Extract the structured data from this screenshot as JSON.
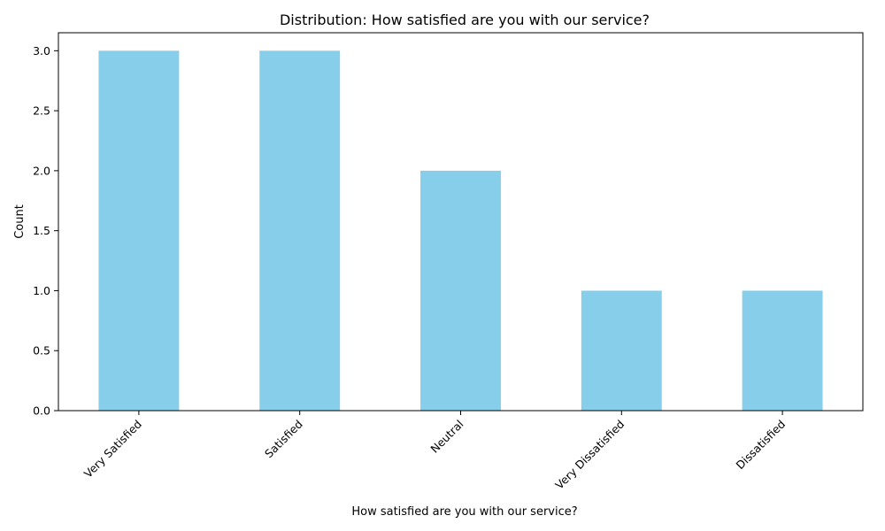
{
  "colors": {
    "bar": "#87ceeb",
    "axis": "#000000",
    "background": "#ffffff"
  },
  "chart_data": {
    "type": "bar",
    "title": "Distribution: How satisfied are you with our service?",
    "xlabel": "How satisfied are you with our service?",
    "ylabel": "Count",
    "categories": [
      "Very Satisfied",
      "Satisfied",
      "Neutral",
      "Very Dissatisfied",
      "Dissatisfied"
    ],
    "values": [
      3,
      3,
      2,
      1,
      1
    ],
    "ylim": [
      0,
      3.15
    ],
    "yticks": [
      0.0,
      0.5,
      1.0,
      1.5,
      2.0,
      2.5,
      3.0
    ],
    "ytick_labels": [
      "0.0",
      "0.5",
      "1.0",
      "1.5",
      "2.0",
      "2.5",
      "3.0"
    ],
    "grid": false,
    "legend": "none"
  }
}
